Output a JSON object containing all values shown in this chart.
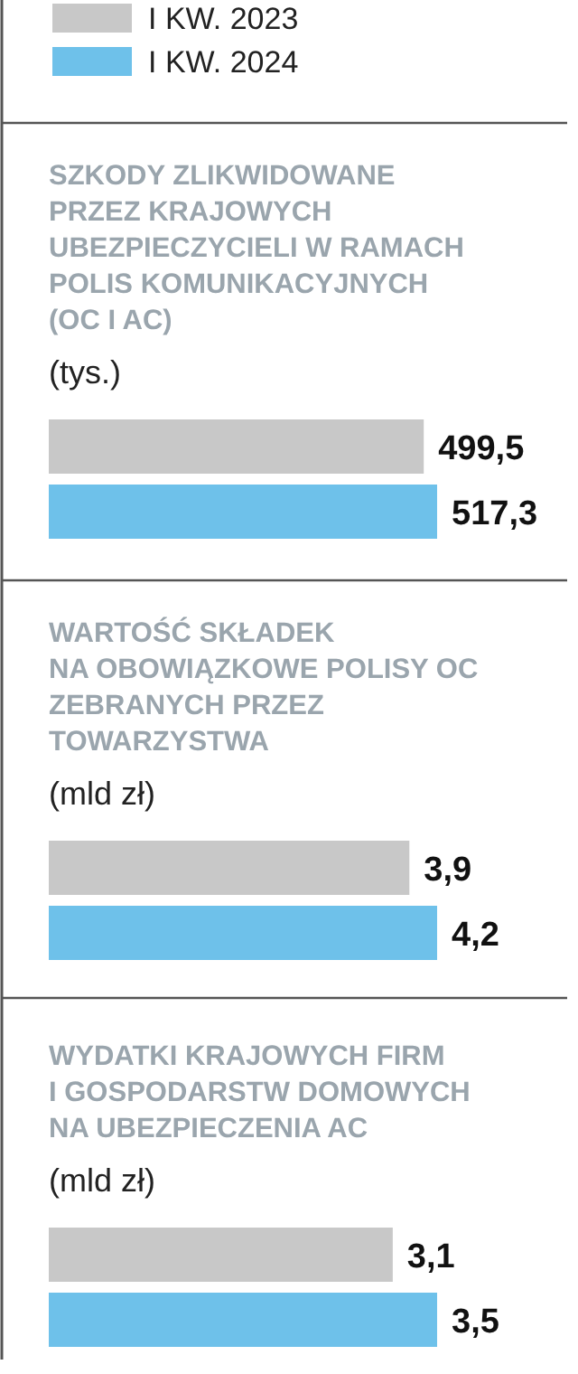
{
  "chart_data": [
    {
      "type": "bar",
      "orientation": "horizontal",
      "title": "SZKODY ZLIKWIDOWANE\nPRZEZ KRAJOWYCH\nUBEZPIECZYCIELI W RAMACH\nPOLIS KOMUNIKACYJNYCH\n(OC I AC)",
      "subtitle": "(tys.)",
      "categories": [
        null
      ],
      "legend": "top",
      "series": [
        {
          "name": "I KW. 2023",
          "color": "#c8c8c8",
          "values": [
            499.5
          ],
          "value_labels": [
            "499,5"
          ]
        },
        {
          "name": "I KW. 2024",
          "color": "#6ec1ea",
          "values": [
            517.3
          ],
          "value_labels": [
            "517,3"
          ]
        }
      ]
    },
    {
      "type": "bar",
      "orientation": "horizontal",
      "title": "WARTOŚĆ SKŁADEK\nNA OBOWIĄZKOWE POLISY OC\nZEBRANYCH PRZEZ\nTOWARZYSTWA",
      "subtitle": "(mld zł)",
      "categories": [
        null
      ],
      "series": [
        {
          "color": "#c8c8c8",
          "values": [
            3.9
          ],
          "value_labels": [
            "3,9"
          ]
        },
        {
          "color": "#6ec1ea",
          "values": [
            4.2
          ],
          "value_labels": [
            "4,2"
          ]
        }
      ]
    },
    {
      "type": "bar",
      "orientation": "horizontal",
      "title": "WYDATKI KRAJOWYCH FIRM\nI GOSPODARSTW DOMOWYCH\nNA UBEZPIECZENIA AC",
      "subtitle": "(mld zł)",
      "categories": [
        null
      ],
      "series": [
        {
          "color": "#c8c8c8",
          "values": [
            3.1
          ],
          "value_labels": [
            "3,1"
          ]
        },
        {
          "color": "#6ec1ea",
          "values": [
            3.5
          ],
          "value_labels": [
            "3,5"
          ]
        }
      ]
    }
  ]
}
